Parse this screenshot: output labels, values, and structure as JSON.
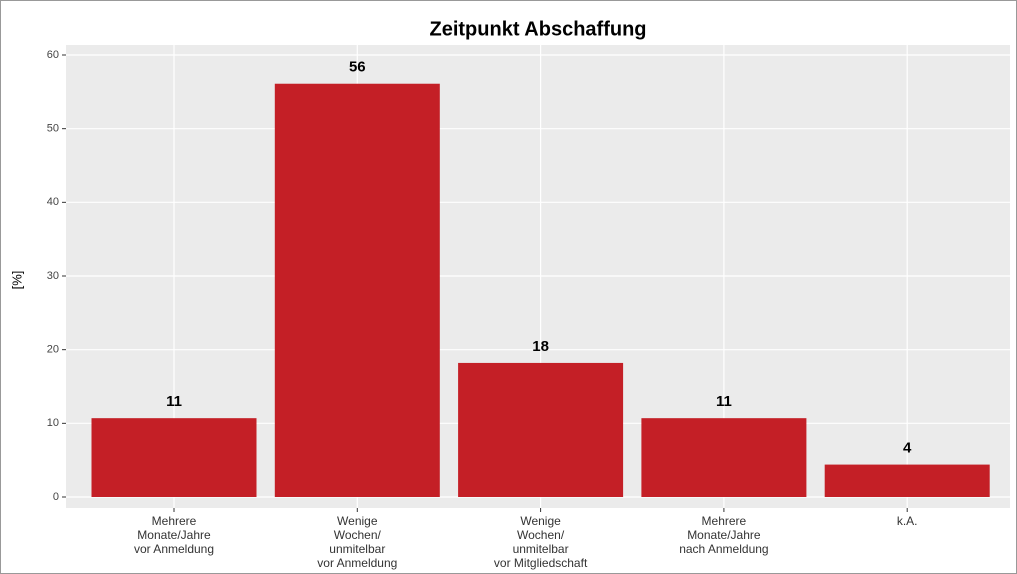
{
  "chart_data": {
    "type": "bar",
    "title": "Zeitpunkt Abschaffung",
    "y_label": "[%]",
    "categories": [
      "Mehrere\nMonate/Jahre\nvor Anmeldung",
      "Wenige\nWochen/\nunmitelbar\nvor Anmeldung",
      "Wenige\nWochen/\nunmitelbar\nvor Mitgliedschaft",
      "Mehrere\nMonate/Jahre\nnach Anmeldung",
      "k.A."
    ],
    "values": [
      10.7,
      56.1,
      18.2,
      10.7,
      4.4
    ],
    "value_labels": [
      "11",
      "56",
      "18",
      "11",
      "4"
    ],
    "color": "#c41f26",
    "ylim": [
      0,
      60
    ],
    "yticks": [
      0,
      10,
      20,
      30,
      40,
      50,
      60
    ],
    "grid": true
  }
}
